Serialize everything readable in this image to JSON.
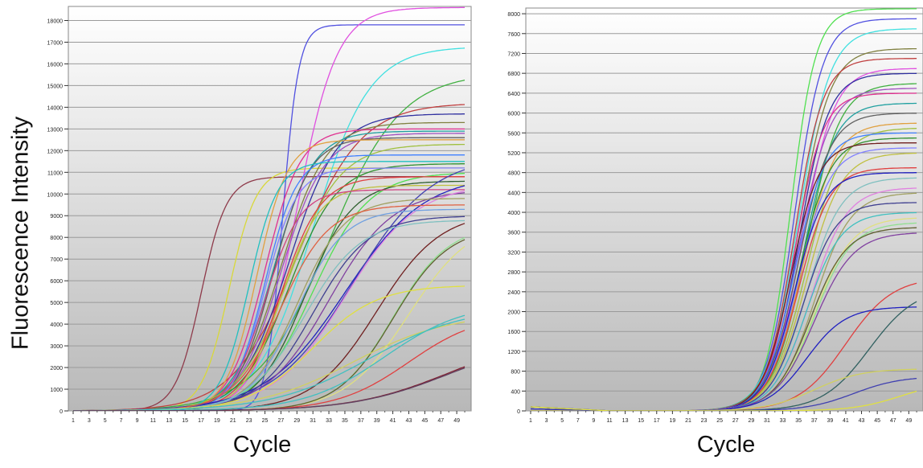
{
  "figure": {
    "ylabel": "Fluorescence Intensity",
    "xlabel": "Cycle"
  },
  "chart_data": [
    {
      "type": "line",
      "title": "",
      "xlabel": "Cycle",
      "ylabel": "Fluorescence Intensity",
      "xlim": [
        1,
        50
      ],
      "ylim": [
        0,
        18500
      ],
      "x_ticks": [
        1,
        3,
        5,
        7,
        9,
        11,
        13,
        15,
        17,
        19,
        21,
        23,
        25,
        27,
        29,
        31,
        33,
        35,
        37,
        39,
        41,
        43,
        45,
        47,
        49
      ],
      "y_ticks": [
        0,
        1000,
        2000,
        3000,
        4000,
        5000,
        6000,
        7000,
        8000,
        9000,
        10000,
        11000,
        12000,
        13000,
        14000,
        15000,
        16000,
        17000,
        18000
      ],
      "grid": true,
      "curve_model": "sigmoid: y = plateau / (1 + exp(-(cycle - midpoint) / slope))",
      "series": [
        {
          "color": "#8e3a4a",
          "plateau": 10800,
          "midpoint": 17,
          "slope": 1.6
        },
        {
          "color": "#d8d83a",
          "plateau": 11200,
          "midpoint": 20.5,
          "slope": 1.7
        },
        {
          "color": "#5050e0",
          "plateau": 17800,
          "midpoint": 27.2,
          "slope": 1.0
        },
        {
          "color": "#e050e0",
          "plateau": 18600,
          "midpoint": 29,
          "slope": 2.5
        },
        {
          "color": "#40e0e0",
          "plateau": 16800,
          "midpoint": 31,
          "slope": 3.5
        },
        {
          "color": "#40b040",
          "plateau": 15600,
          "midpoint": 33,
          "slope": 4.5
        },
        {
          "color": "#c04040",
          "plateau": 14200,
          "midpoint": 29,
          "slope": 4.0
        },
        {
          "color": "#3030a0",
          "plateau": 13700,
          "midpoint": 28,
          "slope": 3.0
        },
        {
          "color": "#808040",
          "plateau": 13300,
          "midpoint": 27,
          "slope": 2.8
        },
        {
          "color": "#e03090",
          "plateau": 13000,
          "midpoint": 25,
          "slope": 2.2
        },
        {
          "color": "#20a0a0",
          "plateau": 12900,
          "midpoint": 26,
          "slope": 2.5
        },
        {
          "color": "#a050c0",
          "plateau": 12800,
          "midpoint": 27,
          "slope": 2.7
        },
        {
          "color": "#606060",
          "plateau": 12600,
          "midpoint": 26,
          "slope": 2.3
        },
        {
          "color": "#e0a040",
          "plateau": 12500,
          "midpoint": 24,
          "slope": 1.9
        },
        {
          "color": "#a0c040",
          "plateau": 12300,
          "midpoint": 28,
          "slope": 3.2
        },
        {
          "color": "#4080ff",
          "plateau": 11800,
          "midpoint": 25,
          "slope": 2.0
        },
        {
          "color": "#20c0c0",
          "plateau": 11500,
          "midpoint": 23,
          "slope": 1.8
        },
        {
          "color": "#309030",
          "plateau": 11400,
          "midpoint": 28,
          "slope": 3.0
        },
        {
          "color": "#8080ff",
          "plateau": 11200,
          "midpoint": 25,
          "slope": 2.0
        },
        {
          "color": "#50e050",
          "plateau": 11000,
          "midpoint": 31,
          "slope": 3.5
        },
        {
          "color": "#e04040",
          "plateau": 10800,
          "midpoint": 27,
          "slope": 2.5
        },
        {
          "color": "#306030",
          "plateau": 10600,
          "midpoint": 30,
          "slope": 3.0
        },
        {
          "color": "#c0c040",
          "plateau": 10400,
          "midpoint": 27,
          "slope": 2.4
        },
        {
          "color": "#d04080",
          "plateau": 10200,
          "midpoint": 25,
          "slope": 2.2
        },
        {
          "color": "#2020c0",
          "plateau": 10900,
          "midpoint": 35,
          "slope": 5.0
        },
        {
          "color": "#4040b0",
          "plateau": 11800,
          "midpoint": 36,
          "slope": 5.0
        },
        {
          "color": "#8040a0",
          "plateau": 10200,
          "midpoint": 33,
          "slope": 4.0
        },
        {
          "color": "#e080e0",
          "plateau": 10500,
          "midpoint": 35,
          "slope": 4.5
        },
        {
          "color": "#a0a060",
          "plateau": 9800,
          "midpoint": 29,
          "slope": 3.0
        },
        {
          "color": "#e06040",
          "plateau": 9500,
          "midpoint": 27,
          "slope": 3.0
        },
        {
          "color": "#70a0e0",
          "plateau": 9300,
          "midpoint": 29,
          "slope": 3.0
        },
        {
          "color": "#702020",
          "plateau": 9200,
          "midpoint": 39,
          "slope": 4.0
        },
        {
          "color": "#404090",
          "plateau": 9000,
          "midpoint": 31,
          "slope": 3.5
        },
        {
          "color": "#80c0c0",
          "plateau": 8800,
          "midpoint": 30,
          "slope": 3.5
        },
        {
          "color": "#e0e080",
          "plateau": 8900,
          "midpoint": 43,
          "slope": 4.0
        },
        {
          "color": "#90e090",
          "plateau": 8600,
          "midpoint": 41,
          "slope": 3.5
        },
        {
          "color": "#606030",
          "plateau": 8500,
          "midpoint": 41,
          "slope": 3.5
        },
        {
          "color": "#e0e040",
          "plateau": 5800,
          "midpoint": 31,
          "slope": 4.0
        },
        {
          "color": "#d0d060",
          "plateau": 4500,
          "midpoint": 36,
          "slope": 6.0
        },
        {
          "color": "#40c0c0",
          "plateau": 5000,
          "midpoint": 40,
          "slope": 5.0
        },
        {
          "color": "#40c0c0",
          "plateau": 4800,
          "midpoint": 38,
          "slope": 6.0
        },
        {
          "color": "#e04040",
          "plateau": 4500,
          "midpoint": 43,
          "slope": 4.5
        },
        {
          "color": "#802030",
          "plateau": 3500,
          "midpoint": 48,
          "slope": 6.0
        },
        {
          "color": "#604060",
          "plateau": 3400,
          "midpoint": 48,
          "slope": 6.0
        }
      ]
    },
    {
      "type": "line",
      "title": "",
      "xlabel": "Cycle",
      "ylabel": "",
      "xlim": [
        1,
        50
      ],
      "ylim": [
        0,
        8000
      ],
      "x_ticks": [
        1,
        3,
        5,
        7,
        9,
        11,
        13,
        15,
        17,
        19,
        21,
        23,
        25,
        27,
        29,
        31,
        33,
        35,
        37,
        39,
        41,
        43,
        45,
        47,
        49
      ],
      "y_ticks": [
        0,
        400,
        800,
        1200,
        1600,
        2000,
        2400,
        2800,
        3200,
        3600,
        4000,
        4400,
        4800,
        5200,
        5600,
        6000,
        6400,
        6800,
        7200,
        7600,
        8000
      ],
      "grid": true,
      "curve_model": "sigmoid: y = plateau / (1 + exp(-(cycle - midpoint) / slope))",
      "series": [
        {
          "color": "#50e050",
          "plateau": 8100,
          "midpoint": 34,
          "slope": 1.6
        },
        {
          "color": "#5050e0",
          "plateau": 7900,
          "midpoint": 34.5,
          "slope": 1.8
        },
        {
          "color": "#40e0e0",
          "plateau": 7700,
          "midpoint": 35,
          "slope": 2.0
        },
        {
          "color": "#808040",
          "plateau": 7300,
          "midpoint": 35,
          "slope": 2.0
        },
        {
          "color": "#c04040",
          "plateau": 7100,
          "midpoint": 34.5,
          "slope": 1.8
        },
        {
          "color": "#e050e0",
          "plateau": 6900,
          "midpoint": 35.5,
          "slope": 2.0
        },
        {
          "color": "#3030a0",
          "plateau": 6800,
          "midpoint": 35,
          "slope": 1.9
        },
        {
          "color": "#40b040",
          "plateau": 6600,
          "midpoint": 36,
          "slope": 2.1
        },
        {
          "color": "#a050c0",
          "plateau": 6500,
          "midpoint": 35,
          "slope": 2.0
        },
        {
          "color": "#e03090",
          "plateau": 6400,
          "midpoint": 34.5,
          "slope": 1.8
        },
        {
          "color": "#20a0a0",
          "plateau": 6200,
          "midpoint": 35.5,
          "slope": 2.0
        },
        {
          "color": "#606060",
          "plateau": 6000,
          "midpoint": 35,
          "slope": 2.0
        },
        {
          "color": "#e0a040",
          "plateau": 5800,
          "midpoint": 35.5,
          "slope": 2.1
        },
        {
          "color": "#a0c040",
          "plateau": 5700,
          "midpoint": 36,
          "slope": 2.2
        },
        {
          "color": "#4080ff",
          "plateau": 5600,
          "midpoint": 34.5,
          "slope": 1.9
        },
        {
          "color": "#309030",
          "plateau": 5500,
          "midpoint": 35,
          "slope": 2.0
        },
        {
          "color": "#702020",
          "plateau": 5400,
          "midpoint": 34,
          "slope": 1.8
        },
        {
          "color": "#8080ff",
          "plateau": 5300,
          "midpoint": 35,
          "slope": 2.0
        },
        {
          "color": "#c0c040",
          "plateau": 5200,
          "midpoint": 36,
          "slope": 2.2
        },
        {
          "color": "#e04040",
          "plateau": 4900,
          "midpoint": 35,
          "slope": 2.0
        },
        {
          "color": "#2020c0",
          "plateau": 4800,
          "midpoint": 34.5,
          "slope": 1.9
        },
        {
          "color": "#80c0c0",
          "plateau": 4700,
          "midpoint": 36,
          "slope": 2.2
        },
        {
          "color": "#e080e0",
          "plateau": 4500,
          "midpoint": 36.5,
          "slope": 2.3
        },
        {
          "color": "#a0a060",
          "plateau": 4400,
          "midpoint": 37,
          "slope": 2.3
        },
        {
          "color": "#404090",
          "plateau": 4200,
          "midpoint": 35.5,
          "slope": 2.1
        },
        {
          "color": "#40c0c0",
          "plateau": 4000,
          "midpoint": 36,
          "slope": 2.2
        },
        {
          "color": "#e0e080",
          "plateau": 3900,
          "midpoint": 37,
          "slope": 2.4
        },
        {
          "color": "#90e090",
          "plateau": 3800,
          "midpoint": 37,
          "slope": 2.4
        },
        {
          "color": "#606030",
          "plateau": 3700,
          "midpoint": 36.5,
          "slope": 2.3
        },
        {
          "color": "#8040a0",
          "plateau": 3600,
          "midpoint": 37,
          "slope": 2.5
        },
        {
          "color": "#e04040",
          "plateau": 2700,
          "midpoint": 41,
          "slope": 3.0
        },
        {
          "color": "#2020c0",
          "plateau": 2100,
          "midpoint": 36,
          "slope": 2.5
        },
        {
          "color": "#306060",
          "plateau": 2500,
          "midpoint": 44,
          "slope": 3.0
        },
        {
          "color": "#d0d060",
          "plateau": 850,
          "midpoint": 37,
          "slope": 3.0
        },
        {
          "color": "#4040b0",
          "plateau": 700,
          "midpoint": 42,
          "slope": 3.0
        },
        {
          "color": "#e0e040",
          "plateau": 600,
          "midpoint": 48,
          "slope": 3.0
        }
      ]
    }
  ]
}
